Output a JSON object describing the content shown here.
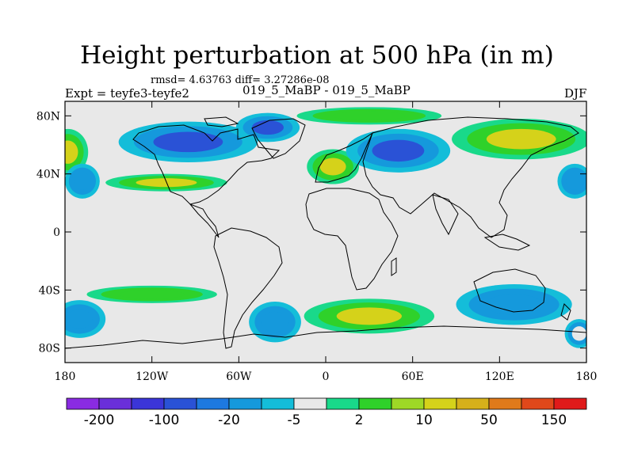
{
  "title": "Height perturbation at 500 hPa (in m)",
  "stats": "rmsd= 4.63763 diff= 3.27286e-08",
  "left_label": "Expt = teyfe3-teyfe2",
  "center_label": "019_5_MaBP - 019_5_MaBP",
  "right_label": "DJF",
  "map": {
    "lon_range": [
      -180,
      180
    ],
    "lat_range": [
      -90,
      90
    ],
    "xticks": [
      {
        "value": -180,
        "label": "180"
      },
      {
        "value": -120,
        "label": "120W"
      },
      {
        "value": -60,
        "label": "60W"
      },
      {
        "value": 0,
        "label": "0"
      },
      {
        "value": 60,
        "label": "60E"
      },
      {
        "value": 120,
        "label": "120E"
      },
      {
        "value": 180,
        "label": "180"
      }
    ],
    "yticks": [
      {
        "value": 80,
        "label": "80N"
      },
      {
        "value": 40,
        "label": "40N"
      },
      {
        "value": 0,
        "label": "0"
      },
      {
        "value": -40,
        "label": "40S"
      },
      {
        "value": -80,
        "label": "80S"
      }
    ],
    "background_color": "#e8e8e8"
  },
  "colorbar": {
    "colors": [
      "#8a2be2",
      "#6a2fd9",
      "#3b35d8",
      "#2a52d6",
      "#1d79e0",
      "#1599dc",
      "#14bdd9",
      "#e8e8e8",
      "#19d98a",
      "#2fd12a",
      "#9ed826",
      "#d5d21a",
      "#d6b01a",
      "#e07a1a",
      "#e0481a",
      "#e01a1a"
    ],
    "labels": [
      {
        "text": "-200",
        "boundary": 1
      },
      {
        "text": "-100",
        "boundary": 3
      },
      {
        "text": "-20",
        "boundary": 5
      },
      {
        "text": "-5",
        "boundary": 7
      },
      {
        "text": "2",
        "boundary": 9
      },
      {
        "text": "10",
        "boundary": 11
      },
      {
        "text": "50",
        "boundary": 13
      },
      {
        "text": "150",
        "boundary": 15
      }
    ]
  },
  "anomalies": [
    {
      "name": "n-pacific-west-high",
      "lon": -178,
      "lat": 55,
      "rx": 14,
      "ry": 16,
      "level": 10
    },
    {
      "name": "n-america-low",
      "lon": -95,
      "lat": 62,
      "rx": 48,
      "ry": 14,
      "level": -100
    },
    {
      "name": "arctic-canada-low",
      "lon": -40,
      "lat": 72,
      "rx": 22,
      "ry": 10,
      "level": -100
    },
    {
      "name": "n-atlantic-rim-high",
      "lon": -110,
      "lat": 34,
      "rx": 42,
      "ry": 6,
      "level": 10
    },
    {
      "name": "n-atlantic-high",
      "lon": 5,
      "lat": 45,
      "rx": 18,
      "ry": 12,
      "level": 10
    },
    {
      "name": "eurasia-low",
      "lon": 50,
      "lat": 56,
      "rx": 36,
      "ry": 15,
      "level": -100
    },
    {
      "name": "arctic-siberia-high",
      "lon": 30,
      "lat": 80,
      "rx": 50,
      "ry": 6,
      "level": 2
    },
    {
      "name": "e-asia-high",
      "lon": 135,
      "lat": 64,
      "rx": 48,
      "ry": 14,
      "level": 10
    },
    {
      "name": "n-pacific-east-low",
      "lon": 172,
      "lat": 35,
      "rx": 12,
      "ry": 12,
      "level": -20
    },
    {
      "name": "w-pacific-low",
      "lon": -168,
      "lat": 35,
      "rx": 12,
      "ry": 12,
      "level": -20
    },
    {
      "name": "s-pacific-west-low",
      "lon": -170,
      "lat": -60,
      "rx": 18,
      "ry": 13,
      "level": -20
    },
    {
      "name": "s-pacific-band",
      "lon": -120,
      "lat": -43,
      "rx": 45,
      "ry": 6,
      "level": 2
    },
    {
      "name": "s-america-low",
      "lon": -35,
      "lat": -62,
      "rx": 18,
      "ry": 14,
      "level": -20
    },
    {
      "name": "s-atlantic-high",
      "lon": 30,
      "lat": -58,
      "rx": 45,
      "ry": 12,
      "level": 10
    },
    {
      "name": "s-indian-low",
      "lon": 130,
      "lat": -50,
      "rx": 40,
      "ry": 14,
      "level": -20
    },
    {
      "name": "s-ocean-edge-low",
      "lon": 175,
      "lat": -70,
      "rx": 10,
      "ry": 10,
      "level": -5
    }
  ]
}
